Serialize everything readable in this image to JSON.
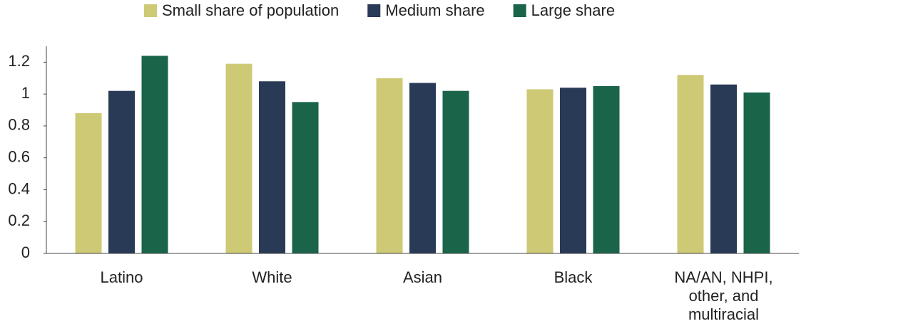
{
  "chart_data": {
    "type": "bar",
    "categories": [
      "Latino",
      "White",
      "Asian",
      "Black",
      "NA/AN, NHPI, other, and multiracial"
    ],
    "series": [
      {
        "name": "Small share of population",
        "color": "#cdc975",
        "values": [
          0.88,
          1.19,
          1.1,
          1.03,
          1.12
        ]
      },
      {
        "name": "Medium share",
        "color": "#283a55",
        "values": [
          1.02,
          1.08,
          1.07,
          1.04,
          1.06
        ]
      },
      {
        "name": "Large share",
        "color": "#1a6449",
        "values": [
          1.24,
          0.95,
          1.02,
          1.05,
          1.01
        ]
      }
    ],
    "ylim": [
      0,
      1.3
    ],
    "yticks": [
      0,
      0.2,
      0.4,
      0.6,
      0.8,
      1,
      1.2
    ],
    "legend": "top"
  }
}
